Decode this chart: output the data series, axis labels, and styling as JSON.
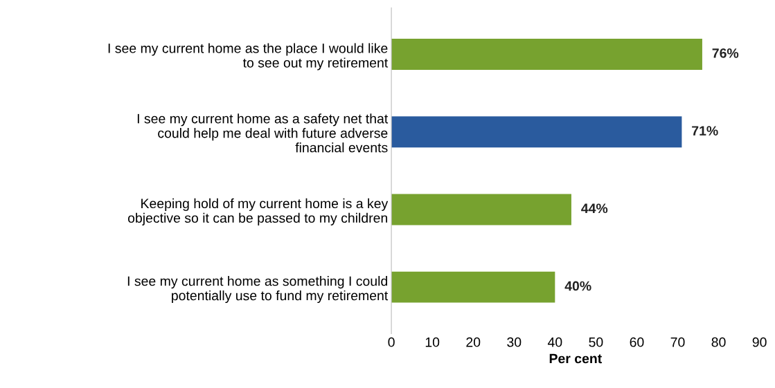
{
  "chart_data": {
    "type": "bar",
    "orientation": "horizontal",
    "categories": [
      "I see my current home as the place I would like\nto see out my retirement",
      "I see my current home as a safety net that\ncould help me deal with future adverse\nfinancial events",
      "Keeping hold of my current home is a key\nobjective so it can be passed to my children",
      "I see my current home as something I could\npotentially use to fund my retirement"
    ],
    "values": [
      76,
      71,
      44,
      40
    ],
    "colors": [
      "#77a22f",
      "#2a5b9e",
      "#77a22f",
      "#77a22f"
    ],
    "value_labels": [
      "76%",
      "71%",
      "44%",
      "40%"
    ],
    "xlabel": "Per cent",
    "xlim": [
      0,
      90
    ],
    "xticks": [
      0,
      10,
      20,
      30,
      40,
      50,
      60,
      70,
      80,
      90
    ],
    "grid": false,
    "legend": false
  }
}
